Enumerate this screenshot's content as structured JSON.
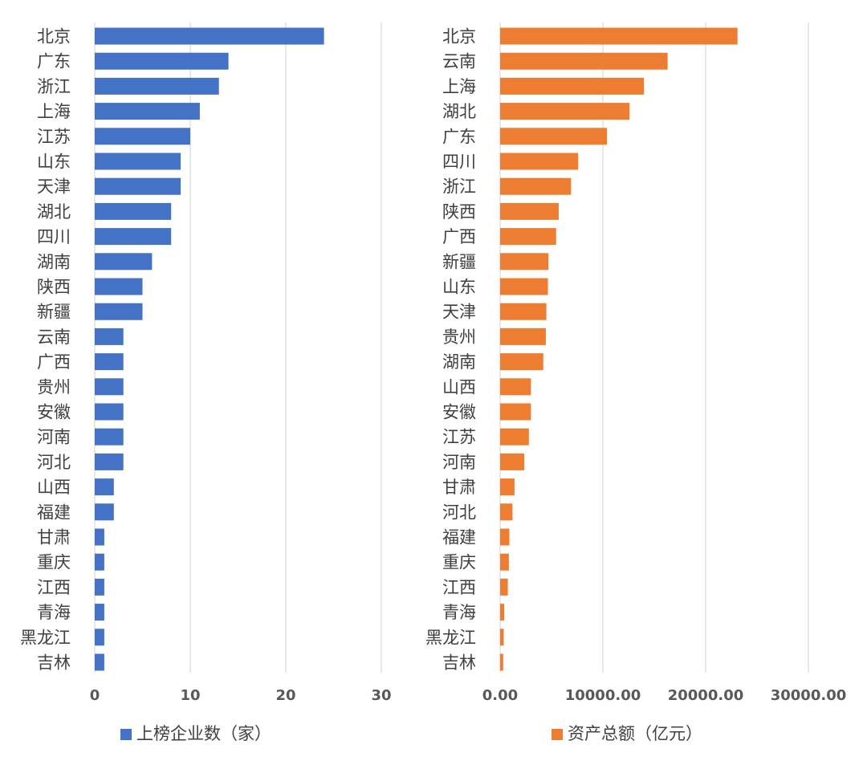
{
  "chart_data": [
    {
      "type": "bar",
      "orientation": "horizontal",
      "categories": [
        "北京",
        "广东",
        "浙江",
        "上海",
        "江苏",
        "山东",
        "天津",
        "湖北",
        "四川",
        "湖南",
        "陕西",
        "新疆",
        "云南",
        "广西",
        "贵州",
        "安徽",
        "河南",
        "河北",
        "山西",
        "福建",
        "甘肃",
        "重庆",
        "江西",
        "青海",
        "黑龙江",
        "吉林"
      ],
      "series": [
        {
          "name": "上榜企业数（家）",
          "values": [
            24,
            14,
            13,
            11,
            10,
            9,
            9,
            8,
            8,
            6,
            5,
            5,
            3,
            3,
            3,
            3,
            3,
            3,
            2,
            2,
            1,
            1,
            1,
            1,
            1,
            1
          ]
        }
      ],
      "xlim": [
        0,
        30
      ],
      "xticks": [
        "0",
        "10",
        "20",
        "30"
      ],
      "grid": true,
      "legend": "bottom",
      "color": "#4472C4"
    },
    {
      "type": "bar",
      "orientation": "horizontal",
      "categories": [
        "北京",
        "云南",
        "上海",
        "湖北",
        "广东",
        "四川",
        "浙江",
        "陕西",
        "广西",
        "新疆",
        "山东",
        "天津",
        "贵州",
        "湖南",
        "山西",
        "安徽",
        "江苏",
        "河南",
        "甘肃",
        "河北",
        "福建",
        "重庆",
        "江西",
        "青海",
        "黑龙江",
        "吉林"
      ],
      "series": [
        {
          "name": "资产总额（亿元）",
          "values": [
            23100,
            16300,
            14000,
            12600,
            10400,
            7600,
            6900,
            5700,
            5450,
            4700,
            4650,
            4500,
            4450,
            4200,
            3000,
            3000,
            2800,
            2350,
            1400,
            1200,
            900,
            850,
            750,
            400,
            350,
            300
          ]
        }
      ],
      "xlim": [
        0,
        30000
      ],
      "xticks": [
        "0.00",
        "10000.00",
        "20000.00",
        "30000.00"
      ],
      "grid": true,
      "legend": "bottom",
      "color": "#ED7D31"
    }
  ]
}
